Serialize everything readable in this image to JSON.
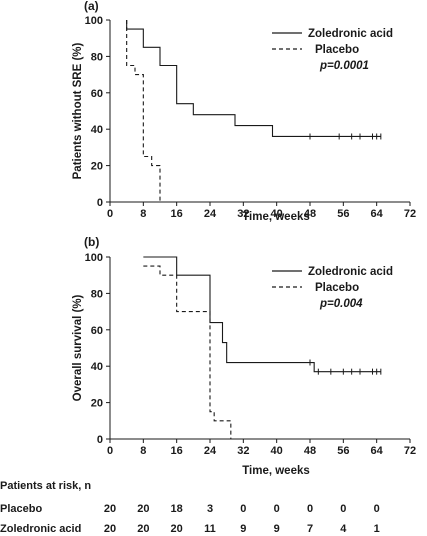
{
  "chart_data": [
    {
      "type": "line",
      "panel_label": "(a)",
      "xlabel": "Time, weeks",
      "ylabel": "Patients without SRE (%)",
      "xlim": [
        0,
        72
      ],
      "ylim": [
        0,
        100
      ],
      "xticks": [
        "0",
        "8",
        "16",
        "24",
        "32",
        "40",
        "48",
        "56",
        "64",
        "72"
      ],
      "yticks": [
        "0",
        "20",
        "40",
        "60",
        "80",
        "100"
      ],
      "grid": false,
      "legend_position": "top-right",
      "p_value_text": "p=0.0001",
      "series": [
        {
          "name": "Zoledronic acid",
          "style": "solid",
          "points": [
            [
              4,
              100
            ],
            [
              4,
              95
            ],
            [
              8,
              95
            ],
            [
              8,
              85
            ],
            [
              12,
              85
            ],
            [
              12,
              75
            ],
            [
              16,
              75
            ],
            [
              16,
              54
            ],
            [
              20,
              54
            ],
            [
              20,
              48
            ],
            [
              30,
              48
            ],
            [
              30,
              42
            ],
            [
              39,
              42
            ],
            [
              39,
              36
            ],
            [
              65,
              36
            ]
          ],
          "censor_x": [
            48,
            55,
            58,
            60,
            63,
            64,
            65
          ]
        },
        {
          "name": "Placebo",
          "style": "dashed",
          "points": [
            [
              4,
              100
            ],
            [
              4,
              75
            ],
            [
              6,
              75
            ],
            [
              6,
              70
            ],
            [
              8,
              70
            ],
            [
              8,
              25
            ],
            [
              10,
              25
            ],
            [
              10,
              20
            ],
            [
              12,
              20
            ],
            [
              12,
              0
            ]
          ],
          "censor_x": []
        }
      ]
    },
    {
      "type": "line",
      "panel_label": "(b)",
      "xlabel": "Time, weeks",
      "ylabel": "Overall survival (%)",
      "xlim": [
        0,
        72
      ],
      "ylim": [
        0,
        100
      ],
      "xticks": [
        "0",
        "8",
        "16",
        "24",
        "32",
        "40",
        "48",
        "56",
        "64",
        "72"
      ],
      "yticks": [
        "0",
        "20",
        "40",
        "60",
        "80",
        "100"
      ],
      "grid": false,
      "legend_position": "top-right",
      "p_value_text": "p=0.004",
      "series": [
        {
          "name": "Zoledronic acid",
          "style": "solid",
          "points": [
            [
              8,
              100
            ],
            [
              16,
              100
            ],
            [
              16,
              90
            ],
            [
              24,
              90
            ],
            [
              24,
              64
            ],
            [
              27,
              64
            ],
            [
              27,
              53
            ],
            [
              28,
              53
            ],
            [
              28,
              42
            ],
            [
              49,
              42
            ],
            [
              49,
              37
            ],
            [
              65,
              37
            ]
          ],
          "censor_x": [
            48,
            50,
            53,
            56,
            58,
            60,
            63,
            64,
            65
          ]
        },
        {
          "name": "Placebo",
          "style": "dashed",
          "points": [
            [
              8,
              95
            ],
            [
              12,
              95
            ],
            [
              12,
              90
            ],
            [
              16,
              90
            ],
            [
              16,
              70
            ],
            [
              24,
              70
            ],
            [
              24,
              15
            ],
            [
              25,
              15
            ],
            [
              25,
              10
            ],
            [
              29,
              10
            ],
            [
              29,
              0
            ]
          ],
          "censor_x": []
        }
      ]
    }
  ],
  "risk_table": {
    "title": "Patients at risk, n",
    "rows": [
      {
        "label": "Placebo",
        "values": [
          "20",
          "20",
          "18",
          "3",
          "0",
          "0",
          "0",
          "0",
          "0"
        ]
      },
      {
        "label": "Zoledronic acid",
        "values": [
          "20",
          "20",
          "20",
          "11",
          "9",
          "9",
          "7",
          "4",
          "1"
        ]
      }
    ]
  }
}
